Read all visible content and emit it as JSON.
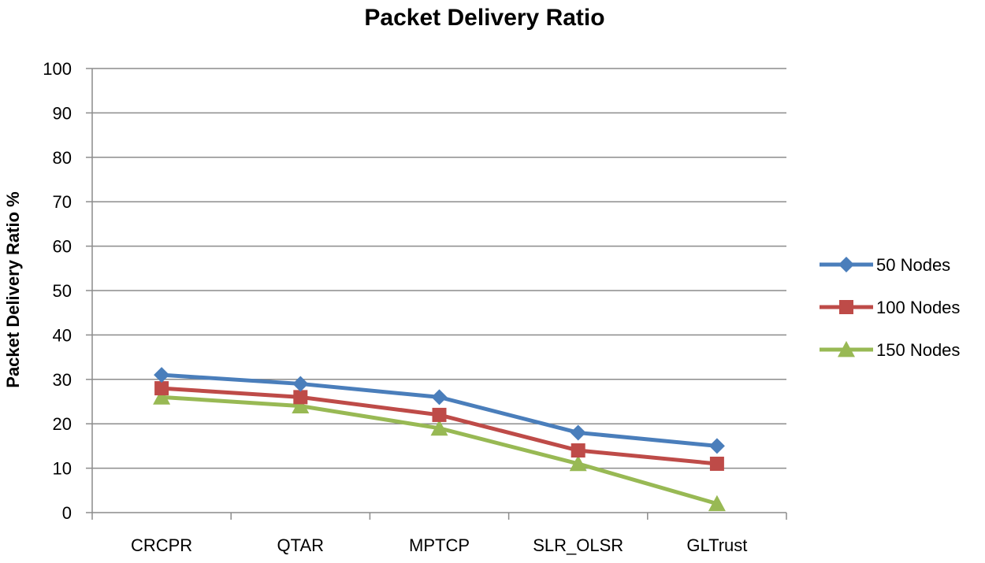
{
  "chart_data": {
    "type": "line",
    "title": "Packet Delivery Ratio",
    "xlabel": "",
    "ylabel": "Packet Delivery Ratio %",
    "ylim": [
      0,
      100
    ],
    "yticks": [
      0,
      10,
      20,
      30,
      40,
      50,
      60,
      70,
      80,
      90,
      100
    ],
    "categories": [
      "CRCPR",
      "QTAR",
      "MPTCP",
      "SLR_OLSR",
      "GLTrust"
    ],
    "grid": true,
    "legend_position": "right",
    "series": [
      {
        "name": "50 Nodes",
        "values": [
          31,
          29,
          26,
          18,
          15
        ],
        "color": "#4a7ebb",
        "marker": "diamond"
      },
      {
        "name": "100 Nodes",
        "values": [
          28,
          26,
          22,
          14,
          11
        ],
        "color": "#be4b48",
        "marker": "square"
      },
      {
        "name": "150 Nodes",
        "values": [
          26,
          24,
          19,
          11,
          2
        ],
        "color": "#98b954",
        "marker": "triangle"
      }
    ]
  }
}
